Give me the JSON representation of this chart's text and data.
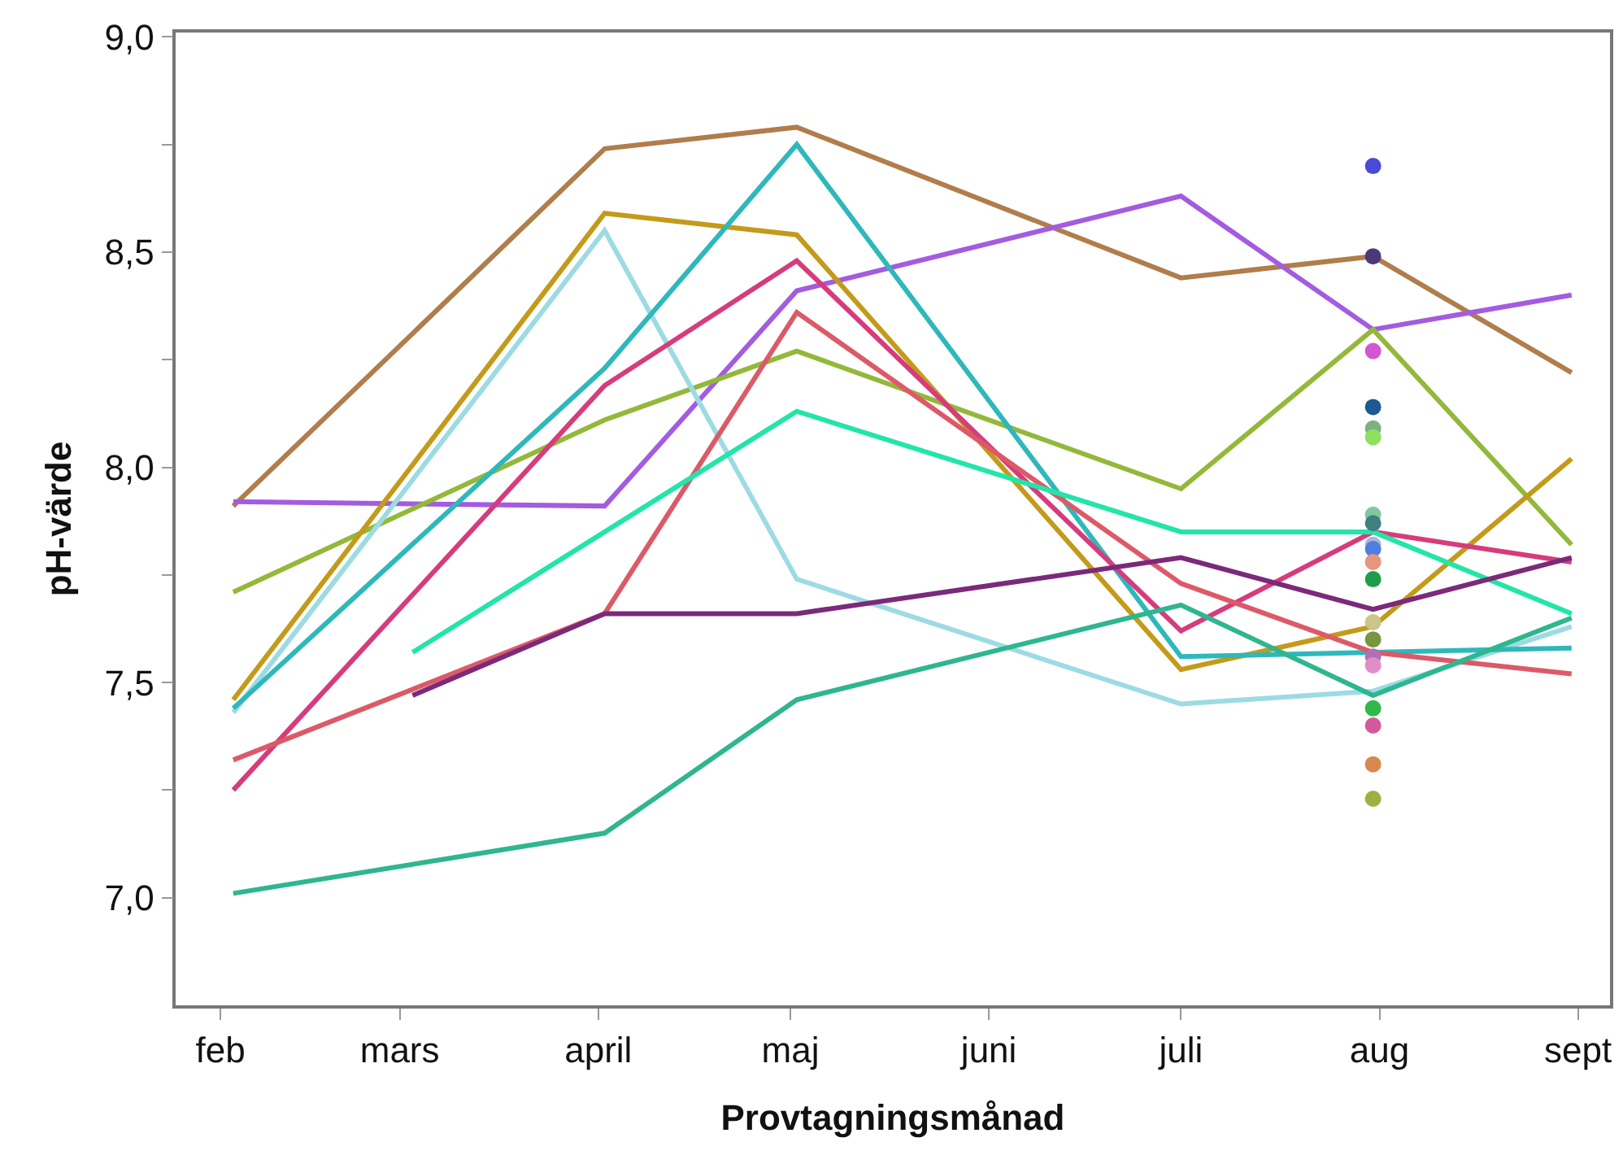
{
  "chart_data": {
    "type": "line",
    "xlabel": "Provtagningsmånad",
    "ylabel": "pH-värde",
    "xlim": [
      "--01-25",
      "--09-06"
    ],
    "xticks": [
      {
        "value": "--02-01",
        "label": "feb"
      },
      {
        "value": "--03-01",
        "label": "mars"
      },
      {
        "value": "--04-01",
        "label": "april"
      },
      {
        "value": "--05-01",
        "label": "maj"
      },
      {
        "value": "--06-01",
        "label": "juni"
      },
      {
        "value": "--07-01",
        "label": "juli"
      },
      {
        "value": "--08-01",
        "label": "aug"
      },
      {
        "value": "--09-01",
        "label": "sept"
      }
    ],
    "ylim": [
      6.75,
      9.01
    ],
    "yticks": [
      {
        "value": 7,
        "label": "7,0"
      },
      {
        "value": 7.25,
        "label": null
      },
      {
        "value": 7.5,
        "label": "7,5"
      },
      {
        "value": 7.75,
        "label": null
      },
      {
        "value": 8,
        "label": "8,0"
      },
      {
        "value": 8.25,
        "label": null
      },
      {
        "value": 8.5,
        "label": "8,5"
      },
      {
        "value": 8.75,
        "label": null
      },
      {
        "value": 9,
        "label": "9,0"
      }
    ],
    "series": [
      {
        "color": "#b07d4b",
        "x": [
          "--02-03",
          "--04-02",
          "--05-02",
          "--07-01",
          "--07-31",
          "--08-31"
        ],
        "values": [
          7.91,
          8.74,
          8.79,
          8.44,
          8.49,
          8.22
        ]
      },
      {
        "color": "#a35ce0",
        "x": [
          "--02-03",
          "--04-02",
          "--05-02",
          "--07-01",
          "--07-31",
          "--08-31"
        ],
        "values": [
          7.92,
          7.91,
          8.41,
          8.63,
          8.32,
          8.4
        ]
      },
      {
        "color": "#93b83a",
        "x": [
          "--02-03",
          "--04-02",
          "--05-02",
          "--07-01",
          "--07-31",
          "--08-31"
        ],
        "values": [
          7.71,
          8.11,
          8.27,
          7.95,
          8.32,
          7.82
        ]
      },
      {
        "color": "#c49a1a",
        "x": [
          "--02-03",
          "--04-02",
          "--05-02",
          "--07-01",
          "--07-31",
          "--08-31"
        ],
        "values": [
          7.46,
          8.59,
          8.54,
          7.53,
          7.63,
          8.02
        ]
      },
      {
        "color": "#9ddbe3",
        "x": [
          "--02-03",
          "--04-02",
          "--05-02",
          "--07-01",
          "--07-31",
          "--08-31"
        ],
        "values": [
          7.43,
          8.55,
          7.74,
          7.45,
          7.48,
          7.63
        ]
      },
      {
        "color": "#2fb8bb",
        "x": [
          "--02-03",
          "--04-02",
          "--05-02",
          "--07-01",
          "--07-31",
          "--08-31"
        ],
        "values": [
          7.44,
          8.23,
          8.75,
          7.56,
          7.57,
          7.58
        ]
      },
      {
        "color": "#d63c7c",
        "x": [
          "--02-03",
          "--04-02",
          "--05-02",
          "--07-01",
          "--07-31",
          "--08-31"
        ],
        "values": [
          7.25,
          8.19,
          8.48,
          7.62,
          7.85,
          7.78
        ]
      },
      {
        "color": "#dc5a68",
        "x": [
          "--02-03",
          "--04-02",
          "--05-02",
          "--07-01",
          "--07-31",
          "--08-31"
        ],
        "values": [
          7.32,
          7.66,
          8.36,
          7.73,
          7.57,
          7.52
        ]
      },
      {
        "color": "#22e5a8",
        "x": [
          "--03-03",
          "--05-02",
          "--07-01",
          "--07-31",
          "--08-31"
        ],
        "values": [
          7.57,
          8.13,
          7.85,
          7.85,
          7.66
        ]
      },
      {
        "color": "#7b2a7a",
        "x": [
          "--03-03",
          "--04-02",
          "--05-02",
          "--07-01",
          "--07-31",
          "--08-31"
        ],
        "values": [
          7.47,
          7.66,
          7.66,
          7.79,
          7.67,
          7.79
        ]
      },
      {
        "color": "#2fb68f",
        "x": [
          "--02-03",
          "--04-02",
          "--05-02",
          "--07-01",
          "--07-31",
          "--08-31"
        ],
        "values": [
          7.01,
          7.15,
          7.46,
          7.68,
          7.47,
          7.65
        ]
      },
      {
        "type": "scatter",
        "x": [
          "--07-31",
          "--07-31",
          "--07-31",
          "--07-31",
          "--07-31",
          "--07-31",
          "--07-31",
          "--07-31",
          "--07-31",
          "--07-31",
          "--07-31",
          "--07-31",
          "--07-31",
          "--07-31",
          "--07-31",
          "--07-31",
          "--07-31",
          "--07-31",
          "--07-31",
          "--07-31"
        ],
        "values": [
          8.7,
          8.49,
          8.27,
          8.14,
          8.09,
          8.07,
          7.89,
          7.87,
          7.82,
          7.81,
          7.78,
          7.74,
          7.64,
          7.6,
          7.56,
          7.54,
          7.44,
          7.4,
          7.31,
          7.23
        ],
        "colors": [
          "#4a4ad8",
          "#4b3a7a",
          "#d257d0",
          "#1b5a94",
          "#7fb07f",
          "#8ee060",
          "#7fc8a0",
          "#3f7f7f",
          "#a8b4d8",
          "#4f7fe0",
          "#e6967e",
          "#1e9e4a",
          "#cbc58a",
          "#769640",
          "#b070b8",
          "#e08ec8",
          "#30b84a",
          "#d25a9c",
          "#d88a4e",
          "#a0b040"
        ]
      }
    ]
  }
}
